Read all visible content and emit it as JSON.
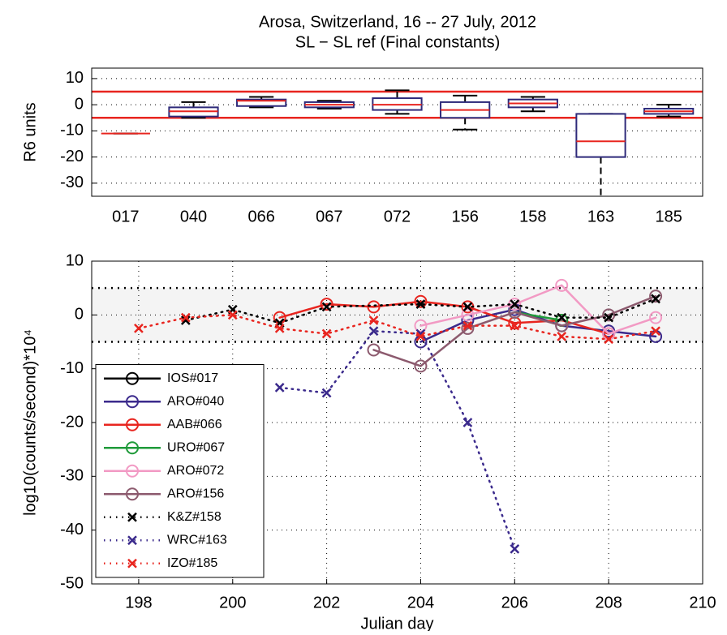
{
  "chart_data": [
    {
      "type": "box",
      "title": "Arosa, Switzerland, 16 -- 27 July, 2012",
      "subtitle": "SL − SL ref (Final constants)",
      "ylabel": "R6 units",
      "categories": [
        "017",
        "040",
        "066",
        "067",
        "072",
        "156",
        "158",
        "163",
        "185"
      ],
      "boxes": [
        {
          "whislo": -11,
          "q1": -11,
          "med": -11,
          "q3": -11,
          "whishi": -11
        },
        {
          "whislo": -5,
          "q1": -4.5,
          "med": -2.5,
          "q3": -1,
          "whishi": 1
        },
        {
          "whislo": -1,
          "q1": -0.5,
          "med": 1.5,
          "q3": 2,
          "whishi": 3
        },
        {
          "whislo": -1.5,
          "q1": -1,
          "med": 0,
          "q3": 1,
          "whishi": 1.5
        },
        {
          "whislo": -3.5,
          "q1": -2,
          "med": 0,
          "q3": 2.5,
          "whishi": 5.5
        },
        {
          "whislo": -9.5,
          "q1": -5,
          "med": -2,
          "q3": 1,
          "whishi": 3.5
        },
        {
          "whislo": -2.5,
          "q1": -1,
          "med": 0.5,
          "q3": 2,
          "whishi": 3
        },
        {
          "whislo": -40,
          "q1": -20,
          "med": -14,
          "q3": -3.5,
          "whishi": -3.5
        },
        {
          "whislo": -4.5,
          "q1": -3.5,
          "med": -2.5,
          "q3": -1.5,
          "whishi": 0
        }
      ],
      "box_color": "#2e2a7a",
      "median_color": "#e8251f",
      "hlines": [
        5,
        -5
      ],
      "hline_color": "#e8251f",
      "ylim": [
        -35,
        14
      ],
      "yticks": [
        -30,
        -20,
        -10,
        0,
        10
      ],
      "grid": true
    },
    {
      "type": "line",
      "xlabel": "Julian day",
      "ylabel": "log10(counts/second)*10⁴",
      "xlim": [
        197,
        210
      ],
      "xticks": [
        198,
        200,
        202,
        204,
        206,
        208,
        210
      ],
      "ylim": [
        -50,
        10
      ],
      "yticks": [
        -50,
        -40,
        -30,
        -20,
        -10,
        0,
        10
      ],
      "grid": true,
      "legend": "lower left",
      "reference_band": [
        -5,
        5
      ],
      "series": [
        {
          "name": "IOS#017",
          "color": "#000000",
          "linestyle": "solid",
          "marker": "o",
          "x": [
            200
          ],
          "values": [
            -11
          ]
        },
        {
          "name": "ARO#040",
          "color": "#3b2a8c",
          "linestyle": "solid",
          "marker": "o",
          "x": [
            204,
            205,
            206,
            207,
            208,
            209
          ],
          "values": [
            -5,
            -1,
            1,
            -2,
            -3,
            -4
          ]
        },
        {
          "name": "AAB#066",
          "color": "#e8251f",
          "linestyle": "solid",
          "marker": "o",
          "x": [
            201,
            202,
            203,
            204,
            205,
            206,
            207,
            208
          ],
          "values": [
            -0.5,
            2,
            1.5,
            2.5,
            1.5,
            -1.5,
            -1,
            -3.5
          ]
        },
        {
          "name": "URO#067",
          "color": "#1f9a3a",
          "linestyle": "solid",
          "marker": "o",
          "x": [
            206,
            207
          ],
          "values": [
            0.5,
            -1
          ]
        },
        {
          "name": "ARO#072",
          "color": "#f29ac4",
          "linestyle": "solid",
          "marker": "o",
          "x": [
            204,
            205,
            206,
            207,
            208,
            209
          ],
          "values": [
            -2,
            0,
            2,
            5.5,
            -3.5,
            -0.5
          ]
        },
        {
          "name": "ARO#156",
          "color": "#8c5a6e",
          "linestyle": "solid",
          "marker": "o",
          "x": [
            203,
            204,
            205,
            206,
            207,
            208,
            209
          ],
          "values": [
            -6.5,
            -9.5,
            -2.5,
            0.5,
            -2,
            0,
            3.5
          ]
        },
        {
          "name": "K&Z#158",
          "color": "#000000",
          "linestyle": "dotted",
          "marker": "x",
          "x": [
            199,
            200,
            201,
            202,
            204,
            205,
            206,
            207,
            208,
            209
          ],
          "values": [
            -1,
            1,
            -1.5,
            1.5,
            2,
            1.5,
            2,
            -0.5,
            -0.5,
            3
          ]
        },
        {
          "name": "WRC#163",
          "color": "#3b2a8c",
          "linestyle": "dotted",
          "marker": "x",
          "x": [
            201,
            202,
            203,
            204,
            205,
            206
          ],
          "values": [
            -13.5,
            -14.5,
            -3,
            -3.5,
            -20,
            -43.5
          ]
        },
        {
          "name": "IZO#185",
          "color": "#e8251f",
          "linestyle": "dotted",
          "marker": "x",
          "x": [
            198,
            199,
            200,
            201,
            202,
            203,
            204,
            205,
            206,
            207,
            208,
            209
          ],
          "values": [
            -2.5,
            -0.5,
            0,
            -2.5,
            -3.5,
            -1,
            -4,
            -2,
            -2,
            -4,
            -4.5,
            -3
          ]
        }
      ]
    }
  ]
}
